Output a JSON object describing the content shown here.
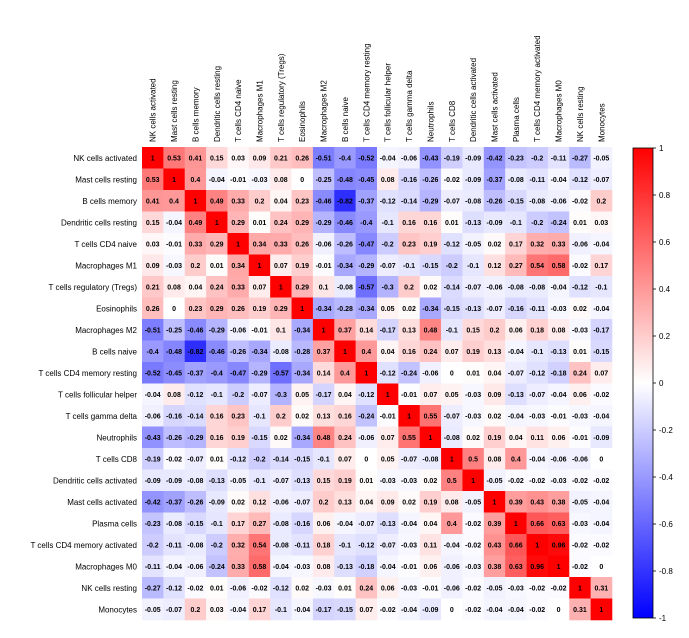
{
  "chart_data": {
    "type": "heatmap",
    "title": "",
    "labels": [
      "NK cells activated",
      "Mast cells resting",
      "B cells memory",
      "Dendritic cells resting",
      "T cells CD4 naive",
      "Macrophages M1",
      "T cells regulatory (Tregs)",
      "Eosinophils",
      "Macrophages M2",
      "B cells naive",
      "T cells CD4 memory resting",
      "T cells follicular helper",
      "T cells gamma delta",
      "Neutrophils",
      "T cells CD8",
      "Dendritic cells activated",
      "Mast cells activated",
      "Plasma cells",
      "T cells CD4 memory activated",
      "Macrophages M0",
      "NK cells resting",
      "Monocytes"
    ],
    "matrix": [
      [
        1,
        0.53,
        0.41,
        0.15,
        0.03,
        0.09,
        0.21,
        0.26,
        -0.51,
        -0.4,
        -0.52,
        -0.04,
        -0.06,
        -0.43,
        -0.19,
        -0.09,
        -0.42,
        -0.23,
        -0.2,
        -0.11,
        -0.27,
        -0.05
      ],
      [
        0.53,
        1,
        0.4,
        -0.04,
        -0.01,
        -0.03,
        0.08,
        0,
        -0.25,
        -0.48,
        -0.45,
        0.08,
        -0.16,
        -0.26,
        -0.02,
        -0.09,
        -0.37,
        -0.08,
        -0.11,
        -0.04,
        -0.12,
        -0.07
      ],
      [
        0.41,
        0.4,
        1,
        0.49,
        0.33,
        0.2,
        0.04,
        0.23,
        -0.46,
        -0.82,
        -0.37,
        -0.12,
        -0.14,
        -0.29,
        -0.07,
        -0.08,
        -0.26,
        -0.15,
        -0.08,
        -0.06,
        -0.02,
        0.2
      ],
      [
        0.15,
        -0.04,
        0.49,
        1,
        0.29,
        0.01,
        0.24,
        0.29,
        -0.29,
        -0.46,
        -0.4,
        -0.1,
        0.16,
        0.16,
        0.01,
        -0.13,
        -0.09,
        -0.1,
        -0.2,
        -0.24,
        0.01,
        0.03
      ],
      [
        0.03,
        -0.01,
        0.33,
        0.29,
        1,
        0.34,
        0.33,
        0.26,
        -0.06,
        -0.26,
        -0.47,
        -0.2,
        0.23,
        0.19,
        -0.12,
        -0.05,
        0.02,
        0.17,
        0.32,
        0.33,
        -0.06,
        -0.04
      ],
      [
        0.09,
        -0.03,
        0.2,
        0.01,
        0.34,
        1,
        0.07,
        0.19,
        -0.01,
        -0.34,
        -0.29,
        -0.07,
        -0.1,
        -0.15,
        -0.2,
        -0.1,
        0.12,
        0.27,
        0.54,
        0.58,
        -0.02,
        0.17
      ],
      [
        0.21,
        0.08,
        0.04,
        0.24,
        0.33,
        0.07,
        1,
        0.29,
        0.1,
        -0.08,
        -0.57,
        -0.3,
        0.2,
        0.02,
        -0.14,
        -0.07,
        -0.06,
        -0.08,
        -0.08,
        -0.04,
        -0.12,
        -0.1
      ],
      [
        0.26,
        0,
        0.23,
        0.29,
        0.26,
        0.19,
        0.29,
        1,
        -0.34,
        -0.28,
        -0.34,
        0.05,
        0.02,
        -0.34,
        -0.15,
        -0.13,
        -0.07,
        -0.16,
        -0.11,
        -0.03,
        0.02,
        -0.04
      ],
      [
        -0.51,
        -0.25,
        -0.46,
        -0.29,
        -0.06,
        -0.01,
        0.1,
        -0.34,
        1,
        0.37,
        0.14,
        -0.17,
        0.13,
        0.48,
        -0.1,
        0.15,
        0.2,
        0.06,
        0.18,
        0.08,
        -0.03,
        -0.17
      ],
      [
        -0.4,
        -0.48,
        -0.82,
        -0.46,
        -0.26,
        -0.34,
        -0.08,
        -0.28,
        0.37,
        1,
        0.4,
        0.04,
        0.16,
        0.24,
        0.07,
        0.19,
        0.13,
        -0.04,
        -0.1,
        -0.13,
        0.01,
        -0.15
      ],
      [
        -0.52,
        -0.45,
        -0.37,
        -0.4,
        -0.47,
        -0.29,
        -0.57,
        -0.34,
        0.14,
        0.4,
        1,
        -0.12,
        -0.24,
        -0.06,
        0,
        0.01,
        0.04,
        -0.07,
        -0.12,
        -0.18,
        0.24,
        0.07
      ],
      [
        -0.04,
        0.08,
        -0.12,
        -0.1,
        -0.2,
        -0.07,
        -0.3,
        0.05,
        -0.17,
        0.04,
        -0.12,
        1,
        -0.01,
        0.07,
        0.05,
        -0.03,
        0.09,
        -0.13,
        -0.07,
        -0.04,
        0.06,
        -0.02
      ],
      [
        -0.06,
        -0.16,
        -0.14,
        0.16,
        0.23,
        -0.1,
        0.2,
        0.02,
        0.13,
        0.16,
        -0.24,
        -0.01,
        1,
        0.55,
        -0.07,
        -0.03,
        0.02,
        -0.04,
        -0.03,
        -0.01,
        -0.03,
        -0.04
      ],
      [
        -0.43,
        -0.26,
        -0.29,
        0.16,
        0.19,
        -0.15,
        0.02,
        -0.34,
        0.48,
        0.24,
        -0.06,
        0.07,
        0.55,
        1,
        -0.08,
        0.02,
        0.19,
        0.04,
        0.11,
        0.06,
        -0.01,
        -0.09
      ],
      [
        -0.19,
        -0.02,
        -0.07,
        0.01,
        -0.12,
        -0.2,
        -0.14,
        -0.15,
        -0.1,
        0.07,
        0,
        0.05,
        -0.07,
        -0.08,
        1,
        0.5,
        0.08,
        0.4,
        -0.04,
        -0.06,
        -0.06,
        0
      ],
      [
        -0.09,
        -0.09,
        -0.08,
        -0.13,
        -0.05,
        -0.1,
        -0.07,
        -0.13,
        0.15,
        0.19,
        0.01,
        -0.03,
        -0.03,
        0.02,
        0.5,
        1,
        -0.05,
        -0.02,
        -0.02,
        -0.03,
        -0.02,
        -0.02
      ],
      [
        -0.42,
        -0.37,
        -0.26,
        -0.09,
        0.02,
        0.12,
        -0.06,
        -0.07,
        0.2,
        0.13,
        0.04,
        0.09,
        0.02,
        0.19,
        0.08,
        -0.05,
        1,
        0.39,
        0.43,
        0.38,
        -0.05,
        -0.04
      ],
      [
        -0.23,
        -0.08,
        -0.15,
        -0.1,
        0.17,
        0.27,
        -0.08,
        -0.16,
        0.06,
        -0.04,
        -0.07,
        -0.13,
        -0.04,
        0.04,
        0.4,
        -0.02,
        0.39,
        1,
        0.66,
        0.63,
        -0.03,
        -0.04
      ],
      [
        -0.2,
        -0.11,
        -0.08,
        -0.2,
        0.32,
        0.54,
        -0.08,
        -0.11,
        0.18,
        -0.1,
        -0.12,
        -0.07,
        -0.03,
        0.11,
        -0.04,
        -0.02,
        0.43,
        0.66,
        1,
        0.96,
        -0.02,
        -0.02
      ],
      [
        -0.11,
        -0.04,
        -0.06,
        -0.24,
        0.33,
        0.58,
        -0.04,
        -0.03,
        0.08,
        -0.13,
        -0.18,
        -0.04,
        -0.01,
        0.06,
        -0.06,
        -0.03,
        0.38,
        0.63,
        0.96,
        1,
        -0.02,
        0
      ],
      [
        -0.27,
        -0.12,
        -0.02,
        0.01,
        -0.06,
        -0.02,
        -0.12,
        0.02,
        -0.03,
        0.01,
        0.24,
        0.06,
        -0.03,
        -0.01,
        -0.06,
        -0.02,
        -0.05,
        -0.03,
        -0.02,
        -0.02,
        1,
        0.31
      ],
      [
        -0.05,
        -0.07,
        0.2,
        0.03,
        -0.04,
        0.17,
        -0.1,
        -0.04,
        -0.17,
        -0.15,
        0.07,
        -0.02,
        -0.04,
        -0.09,
        0,
        -0.02,
        -0.04,
        -0.04,
        -0.02,
        0,
        0.31,
        1
      ]
    ],
    "colorbar": {
      "range": [
        -1,
        1
      ],
      "ticks": [
        "1",
        "0.8",
        "0.6",
        "0.4",
        "0.2",
        "0",
        "-0.2",
        "-0.4",
        "-0.6",
        "-0.8",
        "-1"
      ],
      "colors": {
        "low": "#0000ff",
        "mid": "#ffffff",
        "high": "#ff0000"
      }
    },
    "legend_placement": "right",
    "grid": false
  }
}
